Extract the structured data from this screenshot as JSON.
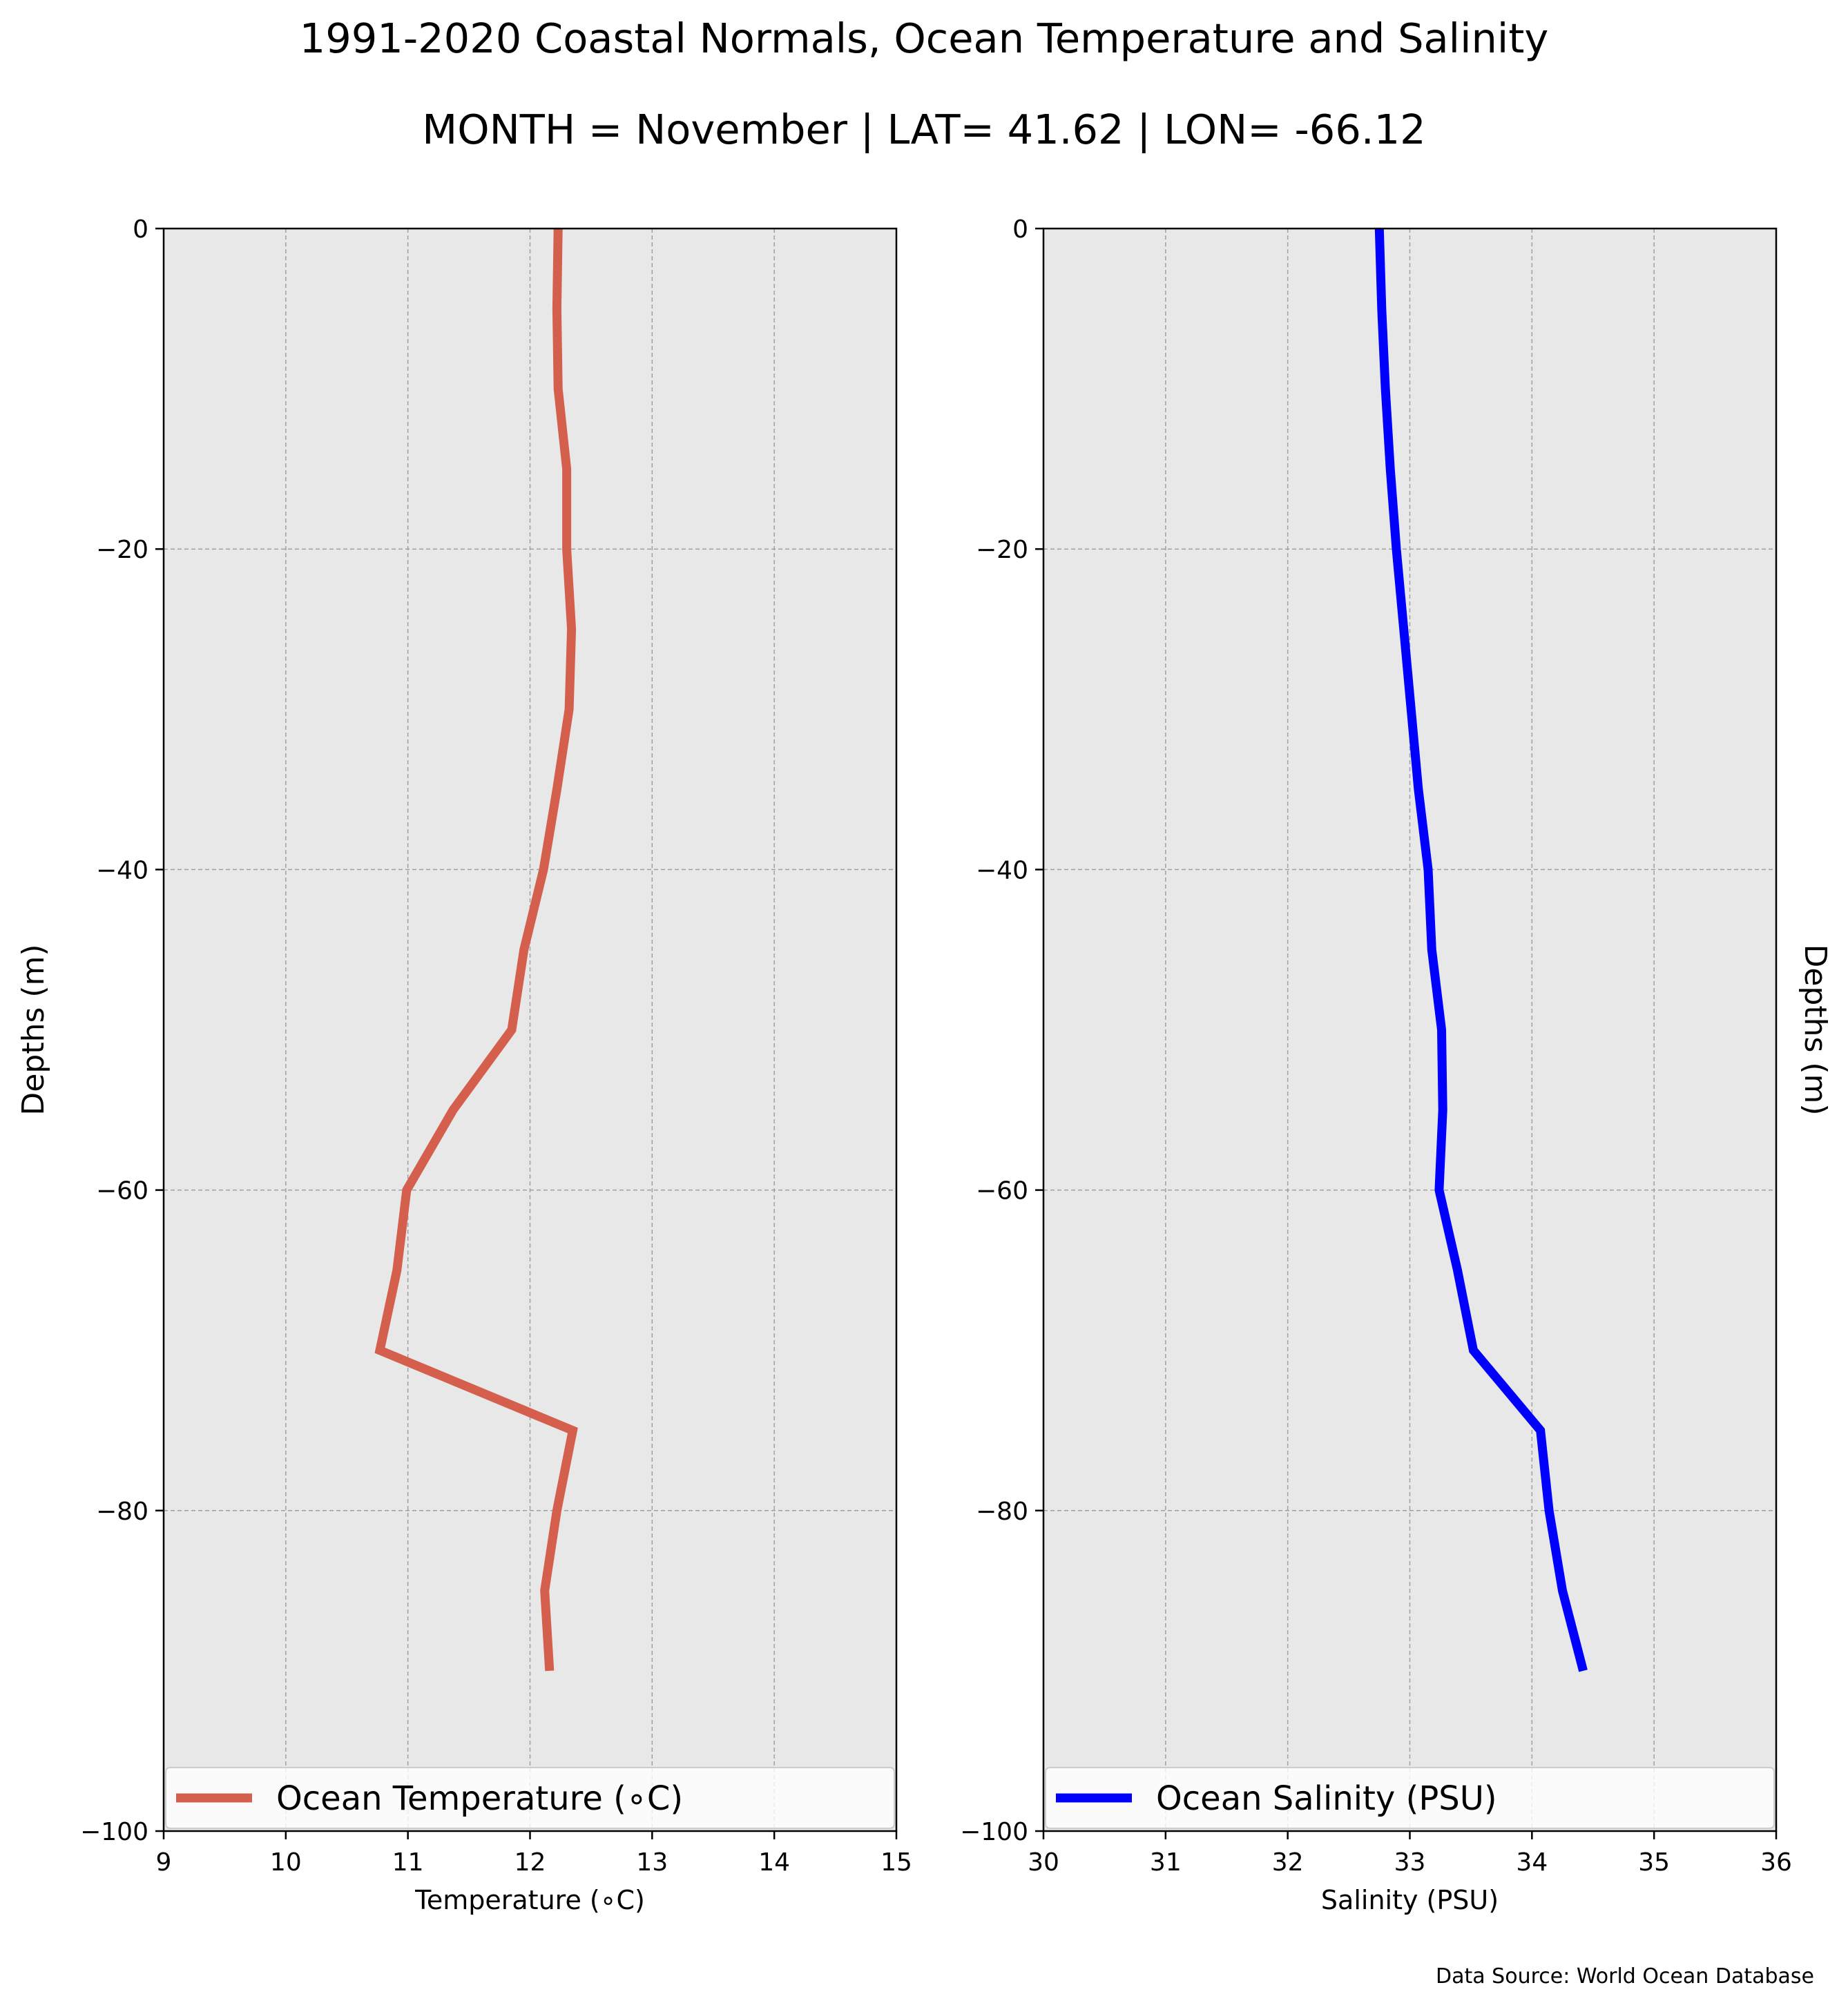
{
  "title": "1991-2020 Coastal Normals, Ocean Temperature and Salinity",
  "subtitle": "MONTH = November | LAT= 41.62 | LON= -66.12",
  "source_note": "Data Source: World Ocean Database",
  "colors": {
    "background": "#ffffff",
    "plot_bg": "#e8e8e8",
    "grid": "#a0a0a0",
    "temperature": "#d35f4c",
    "salinity": "#0000ff"
  },
  "chart_data": [
    {
      "type": "line",
      "title": "",
      "xlabel": "Temperature (∘C)",
      "ylabel": "Depths (m)",
      "ylabel_side": "left",
      "xlim": [
        9,
        15
      ],
      "ylim": [
        -100,
        0
      ],
      "xticks": [
        9,
        10,
        11,
        12,
        13,
        14,
        15
      ],
      "yticks": [
        0,
        -20,
        -40,
        -60,
        -80,
        -100
      ],
      "ytick_labels": [
        "0",
        "−20",
        "−40",
        "−60",
        "−80",
        "−100"
      ],
      "grid": true,
      "legend_position": "bottom",
      "series": [
        {
          "name": "Ocean Temperature (∘C)",
          "color": "#d35f4c",
          "points": [
            {
              "x": 12.23,
              "y": 0
            },
            {
              "x": 12.22,
              "y": -5
            },
            {
              "x": 12.23,
              "y": -10
            },
            {
              "x": 12.3,
              "y": -15
            },
            {
              "x": 12.3,
              "y": -20
            },
            {
              "x": 12.34,
              "y": -25
            },
            {
              "x": 12.32,
              "y": -30
            },
            {
              "x": 12.22,
              "y": -35
            },
            {
              "x": 12.11,
              "y": -40
            },
            {
              "x": 11.95,
              "y": -45
            },
            {
              "x": 11.85,
              "y": -50
            },
            {
              "x": 11.37,
              "y": -55
            },
            {
              "x": 10.99,
              "y": -60
            },
            {
              "x": 10.91,
              "y": -65
            },
            {
              "x": 10.77,
              "y": -70
            },
            {
              "x": 12.35,
              "y": -75
            },
            {
              "x": 12.22,
              "y": -80
            },
            {
              "x": 12.12,
              "y": -85
            },
            {
              "x": 12.16,
              "y": -90
            }
          ]
        }
      ]
    },
    {
      "type": "line",
      "title": "",
      "xlabel": "Salinity (PSU)",
      "ylabel": "Depths (m)",
      "ylabel_side": "right",
      "xlim": [
        30,
        36
      ],
      "ylim": [
        -100,
        0
      ],
      "xticks": [
        30,
        31,
        32,
        33,
        34,
        35,
        36
      ],
      "yticks": [
        0,
        -20,
        -40,
        -60,
        -80,
        -100
      ],
      "ytick_labels": [
        "0",
        "−20",
        "−40",
        "−60",
        "−80",
        "−100"
      ],
      "grid": true,
      "legend_position": "bottom",
      "series": [
        {
          "name": "Ocean Salinity (PSU)",
          "color": "#0000ff",
          "points": [
            {
              "x": 32.75,
              "y": 0
            },
            {
              "x": 32.77,
              "y": -5
            },
            {
              "x": 32.8,
              "y": -10
            },
            {
              "x": 32.84,
              "y": -15
            },
            {
              "x": 32.89,
              "y": -20
            },
            {
              "x": 32.95,
              "y": -25
            },
            {
              "x": 33.01,
              "y": -30
            },
            {
              "x": 33.07,
              "y": -35
            },
            {
              "x": 33.15,
              "y": -40
            },
            {
              "x": 33.18,
              "y": -45
            },
            {
              "x": 33.26,
              "y": -50
            },
            {
              "x": 33.27,
              "y": -55
            },
            {
              "x": 33.24,
              "y": -60
            },
            {
              "x": 33.39,
              "y": -65
            },
            {
              "x": 33.52,
              "y": -70
            },
            {
              "x": 34.07,
              "y": -75
            },
            {
              "x": 34.14,
              "y": -80
            },
            {
              "x": 34.25,
              "y": -85
            },
            {
              "x": 34.42,
              "y": -90
            }
          ]
        }
      ]
    }
  ]
}
